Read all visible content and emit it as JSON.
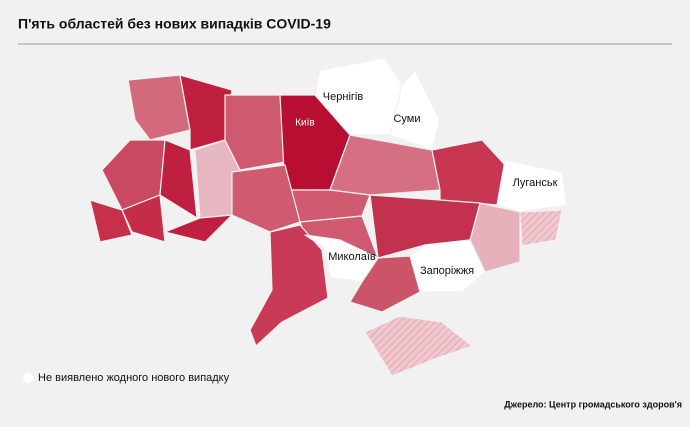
{
  "title": "П'ять областей без нових випадків COVID-19",
  "labels": {
    "chernihiv": "Чернігів",
    "sumy": "Суми",
    "kyiv": "Київ",
    "luhansk": "Луганськ",
    "mykolaiv": "Миколаїв",
    "zaporizhzhia": "Запоріжжя"
  },
  "legend": "Не виявлено жодного нового випадку",
  "source": "Джерело: Центр громадського здоров'я"
}
